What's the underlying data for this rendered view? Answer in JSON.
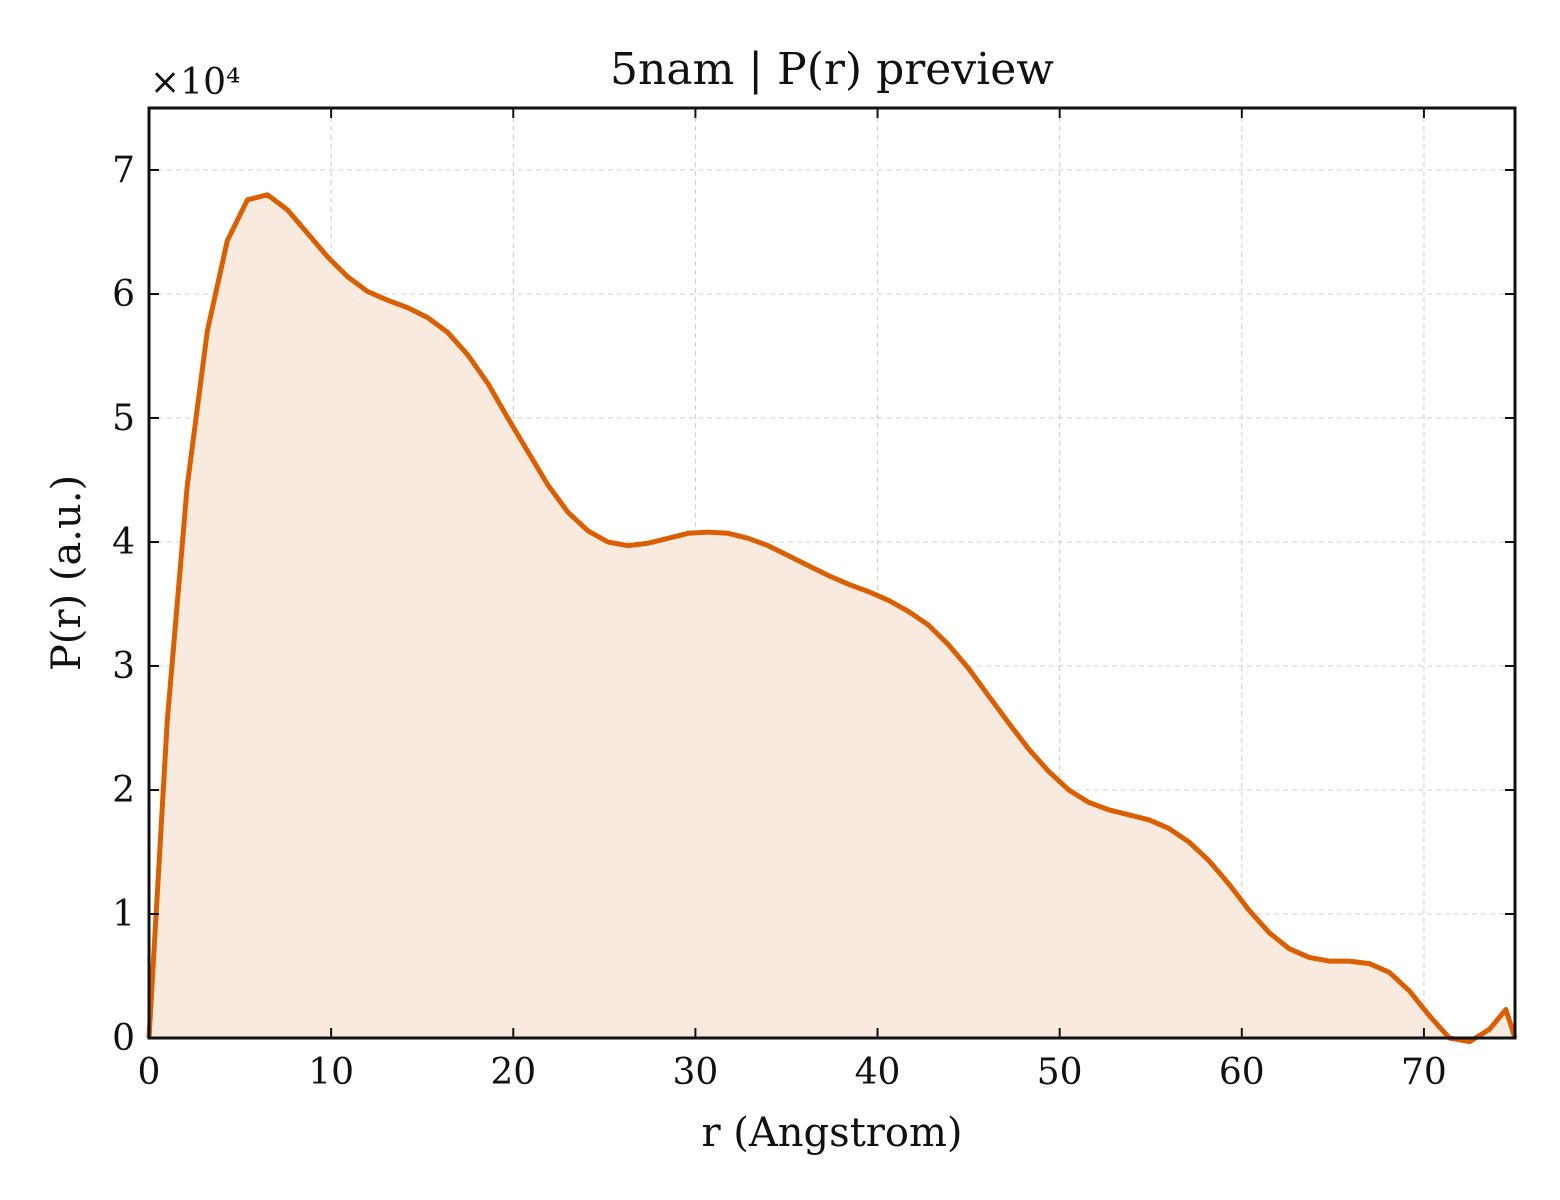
{
  "chart_data": {
    "type": "area",
    "title": "5nam | P(r) preview",
    "xlabel": "r (Angstrom)",
    "ylabel": "P(r) (a.u.)",
    "y_multiplier_label": "×10⁴",
    "xlim": [
      0,
      75
    ],
    "ylim": [
      0,
      7.5
    ],
    "y_scale_factor": 10000,
    "x_ticks": [
      0,
      10,
      20,
      30,
      40,
      50,
      60,
      70
    ],
    "y_ticks": [
      0,
      1,
      2,
      3,
      4,
      5,
      6,
      7
    ],
    "grid": true,
    "legend": "none",
    "line_color": "#d95f02",
    "fill_color": "#f9eadf",
    "series": [
      {
        "x": [
          0,
          1.0,
          2.1,
          3.2,
          4.3,
          5.4,
          6.5,
          7.6,
          8.7,
          9.8,
          10.9,
          12.0,
          13.1,
          14.2,
          15.3,
          16.4,
          17.5,
          18.6,
          19.7,
          20.8,
          21.9,
          23.0,
          24.1,
          25.2,
          26.3,
          27.4,
          28.5,
          29.6,
          30.7,
          31.8,
          32.9,
          34.0,
          35.1,
          36.2,
          37.3,
          38.4,
          39.5,
          40.6,
          41.7,
          42.8,
          43.9,
          45.0,
          46.1,
          47.2,
          48.3,
          49.4,
          50.5,
          51.6,
          52.7,
          53.8,
          54.9,
          56.0,
          57.1,
          58.2,
          59.3,
          60.4,
          61.5,
          62.6,
          63.7,
          64.8,
          65.9,
          67.0,
          68.1,
          69.2,
          70.3,
          71.4,
          72.5,
          73.6,
          74.5,
          75.0
        ],
        "y": [
          0,
          2.55,
          4.45,
          5.7,
          6.43,
          6.76,
          6.8,
          6.68,
          6.49,
          6.3,
          6.14,
          6.02,
          5.95,
          5.89,
          5.81,
          5.69,
          5.51,
          5.28,
          5.0,
          4.73,
          4.46,
          4.24,
          4.09,
          4.0,
          3.97,
          3.99,
          4.03,
          4.07,
          4.08,
          4.07,
          4.03,
          3.97,
          3.89,
          3.81,
          3.73,
          3.66,
          3.6,
          3.53,
          3.44,
          3.33,
          3.17,
          2.98,
          2.76,
          2.54,
          2.33,
          2.15,
          2.0,
          1.9,
          1.84,
          1.8,
          1.76,
          1.69,
          1.58,
          1.43,
          1.24,
          1.03,
          0.85,
          0.72,
          0.65,
          0.62,
          0.62,
          0.6,
          0.53,
          0.38,
          0.18,
          0.0,
          -0.03,
          0.07,
          0.23,
          0.0
        ]
      }
    ]
  }
}
